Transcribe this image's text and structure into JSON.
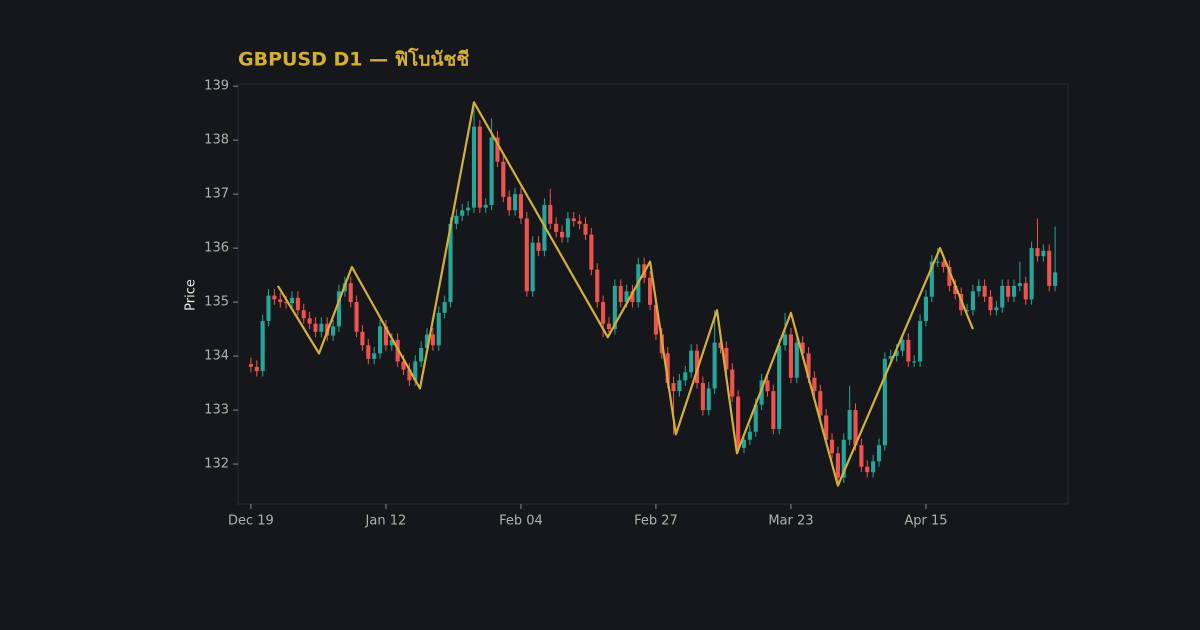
{
  "chart_data": {
    "type": "candlestick",
    "title": "GBPUSD D1 — ฟิโบนัชชี",
    "ylabel": "Price",
    "ylim": [
      131.26,
      139.04
    ],
    "yticks": [
      132,
      133,
      134,
      135,
      136,
      137,
      138,
      139
    ],
    "xlim": [
      -2.2,
      139.2
    ],
    "xticks": [
      {
        "value": 0,
        "label": "Dec 19"
      },
      {
        "value": 23,
        "label": "Jan 12"
      },
      {
        "value": 46,
        "label": "Feb 04"
      },
      {
        "value": 69,
        "label": "Feb 27"
      },
      {
        "value": 92,
        "label": "Mar 23"
      },
      {
        "value": 115,
        "label": "Apr 15"
      }
    ],
    "up_color": "#26a69a",
    "down_color": "#ef5350",
    "open": [
      133.85,
      133.8,
      133.72,
      134.65,
      135.12,
      135.05,
      135.0,
      134.98,
      135.08,
      134.85,
      134.7,
      134.6,
      134.45,
      134.6,
      134.38,
      134.55,
      135.2,
      135.35,
      135.0,
      134.45,
      134.2,
      133.95,
      134.05,
      134.55,
      134.2,
      134.3,
      133.9,
      133.75,
      133.55,
      133.9,
      134.15,
      134.4,
      134.2,
      134.8,
      135.0,
      136.45,
      136.6,
      136.7,
      136.75,
      138.25,
      136.75,
      136.8,
      138.05,
      137.6,
      136.95,
      136.7,
      137.0,
      136.55,
      135.2,
      136.1,
      135.95,
      136.8,
      136.45,
      136.3,
      136.2,
      136.55,
      136.5,
      136.45,
      136.25,
      135.6,
      135.0,
      134.6,
      134.5,
      135.3,
      135.0,
      135.2,
      135.0,
      135.7,
      135.45,
      134.95,
      134.4,
      134.05,
      133.5,
      133.35,
      133.55,
      133.7,
      134.1,
      133.5,
      133.0,
      133.4,
      134.25,
      134.15,
      133.75,
      133.25,
      132.3,
      132.45,
      132.6,
      133.1,
      133.55,
      133.35,
      132.65,
      134.2,
      134.4,
      133.6,
      134.25,
      134.05,
      133.6,
      133.35,
      132.9,
      132.45,
      132.2,
      131.75,
      132.45,
      133.0,
      132.35,
      131.95,
      131.85,
      132.05,
      132.35,
      133.95,
      134.0,
      134.1,
      134.3,
      133.9,
      133.9,
      134.65,
      135.1,
      135.75,
      135.75,
      135.65,
      135.3,
      135.15,
      134.85,
      134.85,
      135.2,
      135.3,
      135.1,
      134.85,
      134.9,
      135.3,
      135.1,
      135.3,
      135.35,
      135.05,
      136.0,
      135.85,
      135.95,
      135.3
    ],
    "high": [
      133.97,
      133.92,
      134.77,
      135.24,
      135.24,
      135.17,
      135.12,
      135.2,
      135.2,
      134.97,
      134.82,
      134.72,
      134.72,
      134.72,
      134.67,
      135.32,
      135.47,
      135.47,
      135.12,
      134.57,
      134.32,
      134.17,
      134.67,
      134.67,
      134.42,
      134.42,
      134.02,
      133.87,
      134.02,
      134.27,
      134.52,
      134.52,
      134.92,
      135.12,
      136.57,
      136.72,
      136.82,
      136.87,
      138.7,
      138.37,
      136.92,
      138.4,
      138.17,
      137.72,
      137.07,
      137.12,
      137.12,
      136.67,
      136.22,
      136.22,
      136.92,
      137.1,
      136.57,
      136.42,
      136.67,
      136.67,
      136.62,
      136.57,
      136.37,
      135.72,
      135.12,
      134.72,
      135.42,
      135.42,
      135.32,
      135.32,
      135.82,
      135.82,
      135.57,
      135.07,
      134.52,
      134.17,
      133.62,
      133.67,
      133.82,
      134.22,
      134.22,
      133.62,
      133.52,
      134.85,
      134.37,
      134.27,
      133.87,
      133.37,
      132.57,
      132.72,
      133.22,
      133.67,
      133.67,
      133.47,
      134.32,
      134.8,
      134.52,
      134.37,
      134.37,
      134.17,
      133.72,
      133.47,
      133.02,
      132.57,
      132.32,
      132.57,
      133.45,
      133.12,
      132.47,
      132.07,
      132.17,
      132.47,
      134.07,
      134.12,
      134.22,
      134.42,
      134.42,
      134.02,
      134.77,
      135.22,
      135.87,
      136.0,
      135.87,
      135.77,
      135.42,
      135.27,
      134.97,
      135.32,
      135.42,
      135.42,
      135.22,
      135.02,
      135.42,
      135.42,
      135.42,
      135.75,
      135.47,
      136.12,
      136.55,
      136.07,
      136.07,
      136.4
    ],
    "low": [
      133.7,
      133.62,
      133.62,
      134.55,
      134.95,
      134.9,
      134.88,
      134.88,
      134.75,
      134.6,
      134.5,
      134.35,
      134.35,
      134.28,
      134.28,
      134.45,
      135.1,
      134.9,
      134.35,
      134.1,
      133.85,
      133.85,
      133.95,
      134.1,
      134.1,
      133.8,
      133.65,
      133.45,
      133.45,
      133.8,
      134.05,
      134.1,
      134.1,
      134.7,
      134.9,
      136.35,
      136.5,
      136.6,
      136.65,
      136.65,
      136.65,
      136.7,
      137.5,
      136.85,
      136.6,
      136.6,
      136.45,
      135.1,
      135.1,
      135.85,
      135.85,
      136.35,
      136.2,
      136.1,
      136.1,
      136.4,
      136.35,
      136.15,
      135.5,
      134.9,
      134.35,
      134.4,
      134.4,
      134.9,
      134.9,
      134.9,
      134.9,
      135.35,
      134.85,
      134.3,
      133.95,
      133.4,
      132.55,
      133.25,
      133.45,
      133.6,
      133.4,
      132.9,
      132.9,
      133.3,
      134.05,
      133.65,
      133.15,
      132.2,
      132.2,
      132.35,
      132.5,
      133.0,
      133.25,
      132.55,
      132.55,
      134.1,
      133.5,
      133.5,
      133.95,
      133.5,
      133.25,
      132.8,
      132.35,
      132.1,
      131.6,
      131.65,
      132.35,
      132.25,
      131.85,
      131.75,
      131.75,
      131.95,
      132.25,
      133.85,
      133.9,
      134.0,
      133.8,
      133.8,
      133.8,
      134.55,
      135.0,
      135.65,
      135.55,
      135.2,
      135.05,
      134.75,
      134.75,
      134.75,
      135.1,
      135.0,
      134.75,
      134.75,
      134.8,
      135.0,
      135.0,
      135.2,
      134.95,
      134.95,
      135.75,
      135.75,
      135.2,
      135.2
    ],
    "close": [
      133.8,
      133.72,
      134.65,
      135.12,
      135.05,
      135.0,
      134.98,
      135.08,
      134.85,
      134.7,
      134.6,
      134.45,
      134.6,
      134.38,
      134.55,
      135.2,
      135.35,
      135.0,
      134.45,
      134.2,
      133.95,
      134.05,
      134.55,
      134.2,
      134.3,
      133.9,
      133.75,
      133.55,
      133.9,
      134.15,
      134.4,
      134.2,
      134.8,
      135.0,
      136.45,
      136.6,
      136.7,
      136.75,
      138.25,
      136.75,
      136.8,
      138.05,
      137.6,
      136.95,
      136.7,
      137.0,
      136.55,
      135.2,
      136.1,
      135.95,
      136.8,
      136.45,
      136.3,
      136.2,
      136.55,
      136.5,
      136.45,
      136.25,
      135.6,
      135.0,
      134.6,
      134.5,
      135.3,
      135.0,
      135.2,
      135.0,
      135.7,
      135.45,
      134.95,
      134.4,
      134.05,
      133.5,
      133.35,
      133.55,
      133.7,
      134.1,
      133.5,
      133.0,
      133.4,
      134.25,
      134.15,
      133.75,
      133.25,
      132.3,
      132.45,
      132.6,
      133.1,
      133.55,
      133.35,
      132.65,
      134.2,
      134.4,
      133.6,
      134.25,
      134.05,
      133.6,
      133.35,
      132.9,
      132.45,
      132.2,
      131.75,
      132.45,
      133.0,
      132.35,
      131.95,
      131.85,
      132.05,
      132.35,
      133.95,
      134.0,
      134.1,
      134.3,
      133.9,
      133.9,
      134.65,
      135.1,
      135.75,
      135.75,
      135.65,
      135.3,
      135.15,
      134.85,
      134.85,
      135.2,
      135.3,
      135.1,
      134.85,
      134.9,
      135.3,
      135.1,
      135.3,
      135.35,
      135.05,
      136.0,
      135.85,
      135.95,
      135.3,
      135.55
    ],
    "overlay": {
      "type": "line",
      "color": "#d4b03a",
      "x": [
        4.6,
        11.6,
        17.2,
        28.8,
        38,
        60.8,
        68,
        72.4,
        79.4,
        82.8,
        92,
        100,
        117.4,
        123
      ],
      "values": [
        135.3,
        134.05,
        135.65,
        133.4,
        138.7,
        134.35,
        135.75,
        132.55,
        134.85,
        132.2,
        134.8,
        131.6,
        136.0,
        134.5
      ]
    }
  }
}
